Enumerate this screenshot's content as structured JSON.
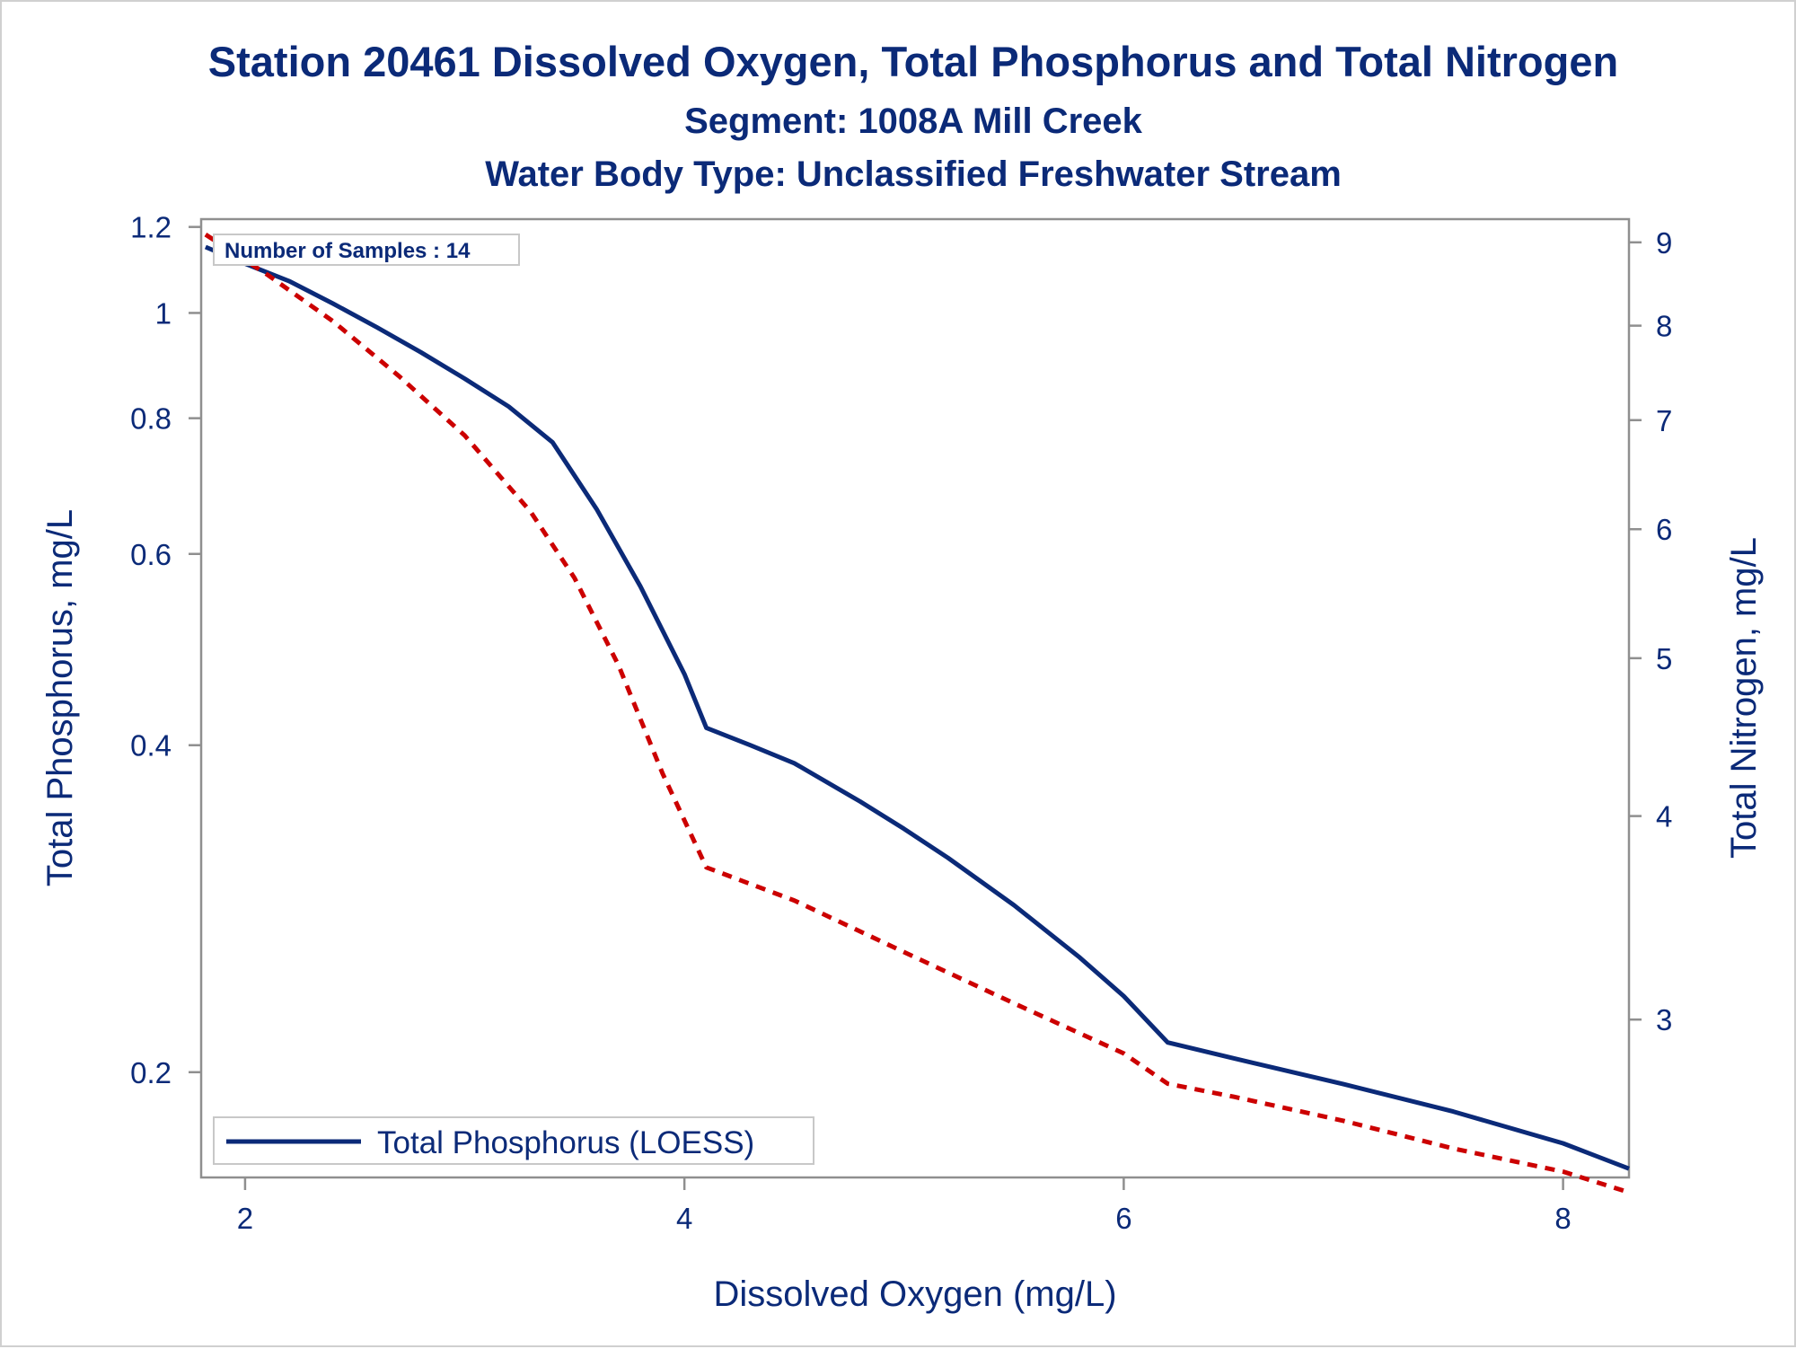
{
  "chart_data": {
    "type": "line",
    "title": "Station 20461  Dissolved Oxygen, Total Phosphorus and Total Nitrogen",
    "subtitle": "Segment: 1008A  Mill Creek",
    "subtitle2": "Water Body Type: Unclassified Freshwater Stream",
    "xlabel": "Dissolved Oxygen (mg/L)",
    "ylabel": "Total Phosphorus, mg/L",
    "y2label": "Total Nitrogen, mg/L",
    "inset_text": "Number of Samples : 14",
    "legend": {
      "label": "Total Phosphorus (LOESS)",
      "placement": "bottom-left"
    },
    "xlim": [
      1.8,
      8.3
    ],
    "ylim": [
      0.16,
      1.22
    ],
    "y_scale": "log",
    "y2lim": [
      2.4,
      9.3
    ],
    "y2_scale": "log",
    "x_ticks": [
      "2",
      "4",
      "6",
      "8"
    ],
    "y_ticks": [
      "0.2",
      "0.4",
      "0.6",
      "0.8",
      "1",
      "1.2"
    ],
    "y2_ticks": [
      "3",
      "4",
      "5",
      "6",
      "7",
      "8",
      "9"
    ],
    "grid": false,
    "series": [
      {
        "name": "Total Phosphorus (LOESS)",
        "axis": "left",
        "color": "#0b2a78",
        "style": "solid",
        "x": [
          1.82,
          2.0,
          2.2,
          2.4,
          2.6,
          2.8,
          3.0,
          3.2,
          3.4,
          3.6,
          3.8,
          4.0,
          4.1,
          4.3,
          4.5,
          4.8,
          5.0,
          5.2,
          5.5,
          5.8,
          6.0,
          6.2,
          6.5,
          7.0,
          7.5,
          8.0,
          8.3
        ],
        "y": [
          1.15,
          1.11,
          1.07,
          1.02,
          0.97,
          0.92,
          0.87,
          0.82,
          0.76,
          0.66,
          0.56,
          0.465,
          0.415,
          0.4,
          0.385,
          0.355,
          0.335,
          0.315,
          0.285,
          0.255,
          0.235,
          0.213,
          0.206,
          0.195,
          0.184,
          0.172,
          0.163
        ]
      },
      {
        "name": "",
        "axis": "right",
        "color": "#cc0000",
        "style": "dashed",
        "x": [
          1.82,
          2.1,
          2.4,
          2.7,
          3.0,
          3.3,
          3.5,
          3.7,
          3.9,
          4.1,
          4.5,
          5.0,
          5.5,
          6.0,
          6.2,
          6.5,
          7.0,
          7.5,
          8.0,
          8.3
        ],
        "y": [
          9.1,
          8.6,
          8.05,
          7.45,
          6.85,
          6.15,
          5.6,
          4.95,
          4.25,
          3.72,
          3.55,
          3.3,
          3.07,
          2.86,
          2.74,
          2.69,
          2.6,
          2.5,
          2.42,
          2.35
        ]
      }
    ]
  },
  "colors": {
    "text": "#0b2a78",
    "series1": "#0b2a78",
    "series2": "#cc0000",
    "axis": "#8f8f8f"
  }
}
